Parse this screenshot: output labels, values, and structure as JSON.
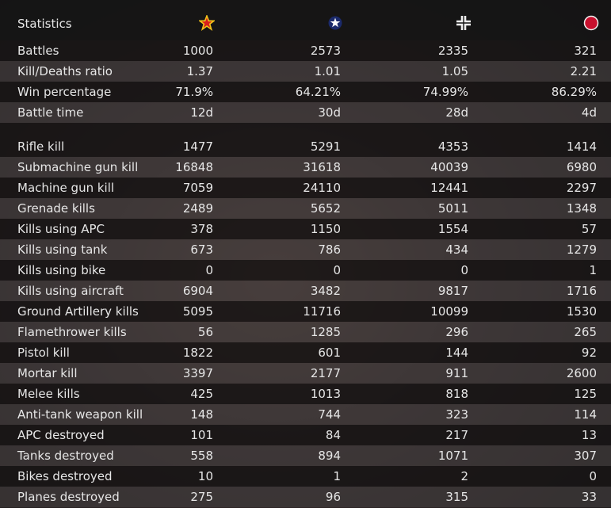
{
  "header": {
    "title": "Statistics"
  },
  "sections": [
    {
      "rows": [
        {
          "label": "Battles",
          "values": [
            "1000",
            "2573",
            "2335",
            "321"
          ]
        },
        {
          "label": "Kill/Deaths ratio",
          "values": [
            "1.37",
            "1.01",
            "1.05",
            "2.21"
          ]
        },
        {
          "label": "Win percentage",
          "values": [
            "71.9%",
            "64.21%",
            "74.99%",
            "86.29%"
          ]
        },
        {
          "label": "Battle time",
          "values": [
            "12d",
            "30d",
            "28d",
            "4d"
          ]
        }
      ]
    },
    {
      "rows": [
        {
          "label": "Rifle kill",
          "values": [
            "1477",
            "5291",
            "4353",
            "1414"
          ]
        },
        {
          "label": "Submachine gun kill",
          "values": [
            "16848",
            "31618",
            "40039",
            "6980"
          ]
        },
        {
          "label": "Machine gun kill",
          "values": [
            "7059",
            "24110",
            "12441",
            "2297"
          ]
        },
        {
          "label": "Grenade kills",
          "values": [
            "2489",
            "5652",
            "5011",
            "1348"
          ]
        },
        {
          "label": "Kills using APC",
          "values": [
            "378",
            "1150",
            "1554",
            "57"
          ]
        },
        {
          "label": "Kills using tank",
          "values": [
            "673",
            "786",
            "434",
            "1279"
          ]
        },
        {
          "label": "Kills using bike",
          "values": [
            "0",
            "0",
            "0",
            "1"
          ]
        },
        {
          "label": "Kills using aircraft",
          "values": [
            "6904",
            "3482",
            "9817",
            "1716"
          ]
        },
        {
          "label": "Ground Artillery kills",
          "values": [
            "5095",
            "11716",
            "10099",
            "1530"
          ]
        },
        {
          "label": "Flamethrower kills",
          "values": [
            "56",
            "1285",
            "296",
            "265"
          ]
        },
        {
          "label": "Pistol kill",
          "values": [
            "1822",
            "601",
            "144",
            "92"
          ]
        },
        {
          "label": "Mortar kill",
          "values": [
            "3397",
            "2177",
            "911",
            "2600"
          ]
        },
        {
          "label": "Melee kills",
          "values": [
            "425",
            "1013",
            "818",
            "125"
          ]
        },
        {
          "label": "Anti-tank weapon kill",
          "values": [
            "148",
            "744",
            "323",
            "114"
          ]
        },
        {
          "label": "APC destroyed",
          "values": [
            "101",
            "84",
            "217",
            "13"
          ]
        },
        {
          "label": "Tanks destroyed",
          "values": [
            "558",
            "894",
            "1071",
            "307"
          ]
        },
        {
          "label": "Bikes destroyed",
          "values": [
            "10",
            "1",
            "2",
            "0"
          ]
        },
        {
          "label": "Planes destroyed",
          "values": [
            "275",
            "96",
            "315",
            "33"
          ]
        }
      ]
    }
  ]
}
